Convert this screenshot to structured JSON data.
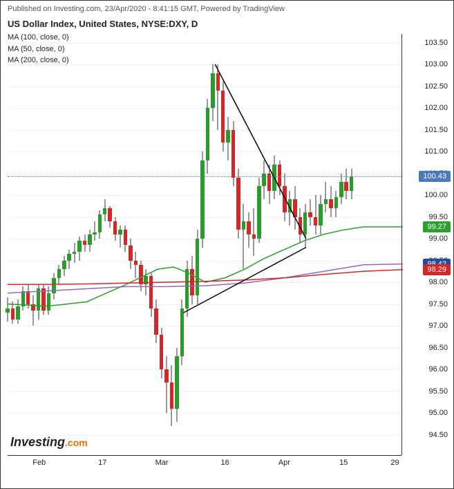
{
  "header": {
    "published": "Published on Investing.com, 23/Apr/2020 - 8:41:15 GMT, Powered by TradingView"
  },
  "title": "US Dollar Index, United States, NYSE:DXY, D",
  "ma_labels": [
    "MA (100, close, 0)",
    "MA (50, close, 0)",
    "MA (200, close, 0)"
  ],
  "chart": {
    "type": "candlestick",
    "ylim": [
      94.0,
      103.7
    ],
    "ytick_step": 0.5,
    "yticks": [
      94.5,
      95.0,
      95.5,
      96.0,
      96.5,
      97.0,
      97.5,
      98.0,
      98.5,
      99.0,
      99.5,
      100.0,
      100.5,
      101.0,
      101.5,
      102.0,
      102.5,
      103.0,
      103.5
    ],
    "xticks": [
      {
        "label": "Feb",
        "pos": 0.08
      },
      {
        "label": "17",
        "pos": 0.24
      },
      {
        "label": "Mar",
        "pos": 0.39
      },
      {
        "label": "16",
        "pos": 0.55
      },
      {
        "label": "Apr",
        "pos": 0.7
      },
      {
        "label": "15",
        "pos": 0.85
      },
      {
        "label": "29",
        "pos": 0.98
      }
    ],
    "current_price": 100.43,
    "price_labels": [
      {
        "value": "100.43",
        "y": 100.43,
        "bg": "#4a7abc"
      },
      {
        "value": "99.27",
        "y": 99.27,
        "bg": "#2ca02c"
      },
      {
        "value": "98.42",
        "y": 98.42,
        "bg": "#1f4e9c"
      },
      {
        "value": "98.29",
        "y": 98.29,
        "bg": "#d62728"
      }
    ],
    "colors": {
      "up": "#2a9c2a",
      "down": "#d62728",
      "neutral": "#333333",
      "background": "#ffffff"
    },
    "candles": [
      {
        "x": 0.0,
        "o": 97.3,
        "h": 97.65,
        "l": 97.1,
        "c": 97.4
      },
      {
        "x": 0.013,
        "o": 97.4,
        "h": 97.55,
        "l": 97.05,
        "c": 97.15
      },
      {
        "x": 0.026,
        "o": 97.15,
        "h": 97.6,
        "l": 97.05,
        "c": 97.45
      },
      {
        "x": 0.039,
        "o": 97.45,
        "h": 97.9,
        "l": 97.35,
        "c": 97.8
      },
      {
        "x": 0.052,
        "o": 97.8,
        "h": 97.95,
        "l": 97.4,
        "c": 97.5
      },
      {
        "x": 0.065,
        "o": 97.5,
        "h": 97.7,
        "l": 97.0,
        "c": 97.35
      },
      {
        "x": 0.078,
        "o": 97.35,
        "h": 97.95,
        "l": 97.15,
        "c": 97.85
      },
      {
        "x": 0.091,
        "o": 97.85,
        "h": 97.95,
        "l": 97.25,
        "c": 97.35
      },
      {
        "x": 0.104,
        "o": 97.35,
        "h": 97.9,
        "l": 97.25,
        "c": 97.75
      },
      {
        "x": 0.117,
        "o": 97.75,
        "h": 98.2,
        "l": 97.6,
        "c": 98.1
      },
      {
        "x": 0.13,
        "o": 98.1,
        "h": 98.4,
        "l": 97.95,
        "c": 98.3
      },
      {
        "x": 0.143,
        "o": 98.3,
        "h": 98.6,
        "l": 98.15,
        "c": 98.5
      },
      {
        "x": 0.156,
        "o": 98.5,
        "h": 98.75,
        "l": 98.3,
        "c": 98.65
      },
      {
        "x": 0.169,
        "o": 98.65,
        "h": 98.9,
        "l": 98.45,
        "c": 98.7
      },
      {
        "x": 0.182,
        "o": 98.7,
        "h": 99.05,
        "l": 98.5,
        "c": 98.95
      },
      {
        "x": 0.195,
        "o": 98.95,
        "h": 99.1,
        "l": 98.7,
        "c": 98.85
      },
      {
        "x": 0.208,
        "o": 98.85,
        "h": 99.2,
        "l": 98.7,
        "c": 99.1
      },
      {
        "x": 0.22,
        "o": 99.1,
        "h": 99.4,
        "l": 98.95,
        "c": 99.15
      },
      {
        "x": 0.233,
        "o": 99.15,
        "h": 99.65,
        "l": 99.0,
        "c": 99.55
      },
      {
        "x": 0.246,
        "o": 99.55,
        "h": 99.9,
        "l": 99.4,
        "c": 99.7
      },
      {
        "x": 0.259,
        "o": 99.7,
        "h": 99.75,
        "l": 99.25,
        "c": 99.4
      },
      {
        "x": 0.272,
        "o": 99.4,
        "h": 99.5,
        "l": 98.95,
        "c": 99.1
      },
      {
        "x": 0.285,
        "o": 99.1,
        "h": 99.3,
        "l": 98.8,
        "c": 99.2
      },
      {
        "x": 0.298,
        "o": 99.2,
        "h": 99.3,
        "l": 98.7,
        "c": 98.85
      },
      {
        "x": 0.311,
        "o": 98.85,
        "h": 99.0,
        "l": 98.3,
        "c": 98.5
      },
      {
        "x": 0.324,
        "o": 98.5,
        "h": 98.7,
        "l": 98.1,
        "c": 98.4
      },
      {
        "x": 0.337,
        "o": 98.4,
        "h": 98.5,
        "l": 97.8,
        "c": 97.95
      },
      {
        "x": 0.35,
        "o": 97.95,
        "h": 98.3,
        "l": 97.7,
        "c": 98.15
      },
      {
        "x": 0.363,
        "o": 98.15,
        "h": 98.2,
        "l": 97.2,
        "c": 97.4
      },
      {
        "x": 0.376,
        "o": 97.4,
        "h": 97.6,
        "l": 96.6,
        "c": 96.8
      },
      {
        "x": 0.389,
        "o": 96.8,
        "h": 96.95,
        "l": 95.8,
        "c": 96.0
      },
      {
        "x": 0.402,
        "o": 96.0,
        "h": 96.3,
        "l": 95.0,
        "c": 95.7
      },
      {
        "x": 0.415,
        "o": 95.7,
        "h": 96.1,
        "l": 94.7,
        "c": 95.1
      },
      {
        "x": 0.428,
        "o": 95.1,
        "h": 96.5,
        "l": 94.8,
        "c": 96.3
      },
      {
        "x": 0.441,
        "o": 96.3,
        "h": 97.6,
        "l": 96.1,
        "c": 97.4
      },
      {
        "x": 0.454,
        "o": 97.4,
        "h": 98.5,
        "l": 97.2,
        "c": 98.3
      },
      {
        "x": 0.467,
        "o": 98.3,
        "h": 98.6,
        "l": 97.5,
        "c": 97.7
      },
      {
        "x": 0.48,
        "o": 97.7,
        "h": 99.2,
        "l": 97.5,
        "c": 99.0
      },
      {
        "x": 0.493,
        "o": 99.0,
        "h": 101.0,
        "l": 98.8,
        "c": 100.8
      },
      {
        "x": 0.506,
        "o": 100.8,
        "h": 102.2,
        "l": 100.5,
        "c": 102.0
      },
      {
        "x": 0.519,
        "o": 102.0,
        "h": 103.0,
        "l": 101.7,
        "c": 102.8
      },
      {
        "x": 0.532,
        "o": 102.8,
        "h": 103.0,
        "l": 101.5,
        "c": 102.4
      },
      {
        "x": 0.545,
        "o": 102.4,
        "h": 102.6,
        "l": 101.0,
        "c": 101.2
      },
      {
        "x": 0.558,
        "o": 101.2,
        "h": 101.8,
        "l": 100.8,
        "c": 101.5
      },
      {
        "x": 0.571,
        "o": 101.5,
        "h": 101.7,
        "l": 100.2,
        "c": 100.4
      },
      {
        "x": 0.584,
        "o": 100.4,
        "h": 100.6,
        "l": 99.0,
        "c": 99.2
      },
      {
        "x": 0.597,
        "o": 99.2,
        "h": 99.8,
        "l": 98.3,
        "c": 99.4
      },
      {
        "x": 0.61,
        "o": 99.4,
        "h": 99.6,
        "l": 98.8,
        "c": 99.1
      },
      {
        "x": 0.623,
        "o": 99.1,
        "h": 99.7,
        "l": 98.6,
        "c": 99.0
      },
      {
        "x": 0.636,
        "o": 99.0,
        "h": 100.4,
        "l": 98.9,
        "c": 100.2
      },
      {
        "x": 0.649,
        "o": 100.2,
        "h": 100.8,
        "l": 99.9,
        "c": 100.5
      },
      {
        "x": 0.662,
        "o": 100.5,
        "h": 100.7,
        "l": 99.8,
        "c": 100.1
      },
      {
        "x": 0.675,
        "o": 100.1,
        "h": 100.9,
        "l": 99.9,
        "c": 100.7
      },
      {
        "x": 0.688,
        "o": 100.7,
        "h": 100.8,
        "l": 100.0,
        "c": 100.2
      },
      {
        "x": 0.701,
        "o": 100.2,
        "h": 100.5,
        "l": 99.4,
        "c": 99.6
      },
      {
        "x": 0.714,
        "o": 99.6,
        "h": 100.1,
        "l": 99.3,
        "c": 99.9
      },
      {
        "x": 0.727,
        "o": 99.9,
        "h": 100.2,
        "l": 99.2,
        "c": 99.5
      },
      {
        "x": 0.74,
        "o": 99.5,
        "h": 99.7,
        "l": 98.9,
        "c": 99.1
      },
      {
        "x": 0.753,
        "o": 99.1,
        "h": 99.8,
        "l": 98.8,
        "c": 99.6
      },
      {
        "x": 0.766,
        "o": 99.6,
        "h": 99.9,
        "l": 99.3,
        "c": 99.5
      },
      {
        "x": 0.779,
        "o": 99.5,
        "h": 100.0,
        "l": 99.1,
        "c": 99.3
      },
      {
        "x": 0.792,
        "o": 99.3,
        "h": 100.0,
        "l": 99.1,
        "c": 99.8
      },
      {
        "x": 0.805,
        "o": 99.8,
        "h": 100.3,
        "l": 99.6,
        "c": 99.9
      },
      {
        "x": 0.818,
        "o": 99.9,
        "h": 100.2,
        "l": 99.5,
        "c": 99.7
      },
      {
        "x": 0.831,
        "o": 99.7,
        "h": 100.1,
        "l": 99.5,
        "c": 99.95
      },
      {
        "x": 0.844,
        "o": 99.95,
        "h": 100.5,
        "l": 99.8,
        "c": 100.3
      },
      {
        "x": 0.857,
        "o": 100.3,
        "h": 100.6,
        "l": 99.9,
        "c": 100.1
      },
      {
        "x": 0.87,
        "o": 100.1,
        "h": 100.6,
        "l": 99.9,
        "c": 100.43
      }
    ],
    "ma_lines": [
      {
        "name": "ma50",
        "color": "#2ca02c",
        "width": 1.5,
        "points": [
          [
            0.0,
            97.5
          ],
          [
            0.1,
            97.45
          ],
          [
            0.2,
            97.55
          ],
          [
            0.3,
            97.95
          ],
          [
            0.38,
            98.3
          ],
          [
            0.42,
            98.35
          ],
          [
            0.46,
            98.2
          ],
          [
            0.5,
            98.0
          ],
          [
            0.55,
            98.1
          ],
          [
            0.6,
            98.3
          ],
          [
            0.65,
            98.55
          ],
          [
            0.7,
            98.75
          ],
          [
            0.75,
            98.95
          ],
          [
            0.8,
            99.1
          ],
          [
            0.85,
            99.2
          ],
          [
            0.9,
            99.27
          ],
          [
            1.0,
            99.27
          ]
        ]
      },
      {
        "name": "ma100",
        "color": "#9467bd",
        "width": 1.5,
        "points": [
          [
            0.0,
            97.75
          ],
          [
            0.1,
            97.8
          ],
          [
            0.2,
            97.85
          ],
          [
            0.3,
            97.9
          ],
          [
            0.4,
            97.9
          ],
          [
            0.5,
            97.92
          ],
          [
            0.6,
            97.98
          ],
          [
            0.7,
            98.1
          ],
          [
            0.8,
            98.25
          ],
          [
            0.9,
            98.4
          ],
          [
            1.0,
            98.42
          ]
        ]
      },
      {
        "name": "ma200",
        "color": "#d62728",
        "width": 1.5,
        "points": [
          [
            0.0,
            97.95
          ],
          [
            0.1,
            97.95
          ],
          [
            0.2,
            97.96
          ],
          [
            0.3,
            97.98
          ],
          [
            0.4,
            98.0
          ],
          [
            0.5,
            98.02
          ],
          [
            0.6,
            98.05
          ],
          [
            0.7,
            98.1
          ],
          [
            0.8,
            98.18
          ],
          [
            0.9,
            98.25
          ],
          [
            1.0,
            98.29
          ]
        ]
      }
    ],
    "trend_lines": [
      {
        "x1": 0.445,
        "y1": 97.3,
        "x2": 0.755,
        "y2": 98.8,
        "color": "#000"
      },
      {
        "x1": 0.525,
        "y1": 103.0,
        "x2": 0.755,
        "y2": 99.0,
        "color": "#000"
      }
    ]
  },
  "logo": {
    "brand": "Investing",
    "suffix": ".com"
  }
}
